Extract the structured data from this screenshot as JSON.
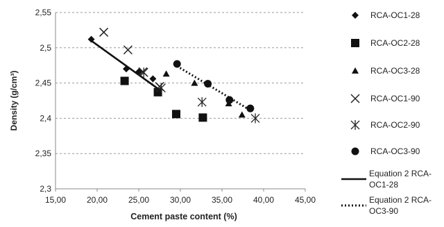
{
  "chart_data": {
    "type": "scatter",
    "xlabel": "Cement paste content (%)",
    "ylabel": "Density (g/cm³)",
    "xlim": [
      15,
      45
    ],
    "ylim": [
      2.3,
      2.55
    ],
    "x_ticks": [
      "15,00",
      "20,00",
      "25,00",
      "30,00",
      "35,00",
      "40,00",
      "45,00"
    ],
    "y_ticks": [
      "2,3",
      "2,35",
      "2,4",
      "2,45",
      "2,5",
      "2,55"
    ],
    "x_tick_values": [
      15,
      20,
      25,
      30,
      35,
      40,
      45
    ],
    "y_tick_values": [
      2.3,
      2.35,
      2.4,
      2.45,
      2.5,
      2.55
    ],
    "grid": "horizontal dashed",
    "legend_position": "right",
    "series": [
      {
        "name": "RCA-OC1-28",
        "marker": "diamond",
        "color": "#111111",
        "points": [
          [
            19.3,
            2.512
          ],
          [
            23.5,
            2.47
          ],
          [
            25.0,
            2.466
          ],
          [
            26.7,
            2.456
          ]
        ]
      },
      {
        "name": "RCA-OC2-28",
        "marker": "square",
        "color": "#111111",
        "points": [
          [
            23.3,
            2.453
          ],
          [
            27.3,
            2.437
          ],
          [
            29.5,
            2.406
          ],
          [
            32.7,
            2.401
          ]
        ]
      },
      {
        "name": "RCA-OC3-28",
        "marker": "triangle",
        "color": "#111111",
        "points": [
          [
            28.3,
            2.463
          ],
          [
            31.7,
            2.45
          ],
          [
            35.8,
            2.421
          ],
          [
            37.4,
            2.405
          ]
        ]
      },
      {
        "name": "RCA-OC1-90",
        "marker": "x",
        "color": "#222222",
        "points": [
          [
            20.8,
            2.522
          ],
          [
            23.7,
            2.497
          ],
          [
            25.5,
            2.466
          ],
          [
            27.5,
            2.445
          ]
        ]
      },
      {
        "name": "RCA-OC2-90",
        "marker": "asterisk",
        "color": "#222222",
        "points": [
          [
            25.6,
            2.465
          ],
          [
            27.7,
            2.443
          ],
          [
            32.6,
            2.423
          ],
          [
            39.0,
            2.4
          ]
        ]
      },
      {
        "name": "RCA-OC3-90",
        "marker": "circle",
        "color": "#111111",
        "points": [
          [
            29.6,
            2.477
          ],
          [
            33.3,
            2.449
          ],
          [
            35.9,
            2.426
          ],
          [
            38.4,
            2.414
          ]
        ]
      }
    ],
    "trendlines": [
      {
        "name": "Equation 2 RCA-OC1-28",
        "style": "solid",
        "color": "#111111",
        "from": [
          19.3,
          2.51
        ],
        "to": [
          27.3,
          2.442
        ]
      },
      {
        "name": "Equation 2 RCA-OC3-90",
        "style": "dotted",
        "color": "#111111",
        "from": [
          29.6,
          2.474
        ],
        "to": [
          38.6,
          2.41
        ]
      }
    ],
    "legend_text": [
      [
        "RCA-OC1-28"
      ],
      [
        "RCA-OC2-28"
      ],
      [
        "RCA-OC3-28"
      ],
      [
        "RCA-OC1-90"
      ],
      [
        "RCA-OC2-90"
      ],
      [
        "RCA-OC3-90"
      ],
      [
        "Equation 2 RCA-",
        "OC1-28"
      ],
      [
        "Equation 2 RCA-",
        "OC3-90"
      ]
    ]
  }
}
